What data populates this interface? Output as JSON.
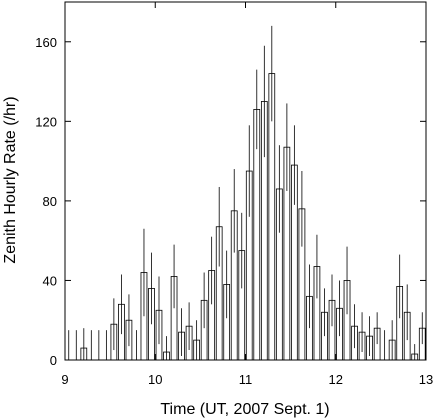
{
  "chart_data": {
    "type": "histogram",
    "xlabel": "Time (UT, 2007 Sept. 1)",
    "ylabel": "Zenith Hourly Rate (/hr)",
    "bins": [
      9,
      9.083,
      9.167,
      9.25,
      9.333,
      9.417,
      9.5,
      9.583,
      9.667,
      9.75,
      9.833,
      9.917,
      10,
      10.083,
      10.167,
      10.25,
      10.333,
      10.417,
      10.5,
      10.583,
      10.667,
      10.75,
      10.833,
      10.917,
      11,
      11.083,
      11.167,
      11.25,
      11.333,
      11.417,
      11.5,
      11.583,
      11.667,
      11.75,
      11.833,
      11.917,
      12,
      12.083,
      12.167,
      12.25,
      12.333,
      12.417,
      12.5,
      12.583,
      12.667,
      12.75,
      12.833,
      12.917,
      13
    ],
    "values": [
      0,
      0,
      6,
      0,
      0,
      0,
      18,
      28,
      20,
      0,
      44,
      36,
      25,
      4,
      42,
      14,
      17,
      10,
      30,
      45,
      67,
      38,
      75,
      55,
      95,
      126,
      130,
      144,
      86,
      107,
      98,
      76,
      32,
      47,
      24,
      30,
      26,
      40,
      17,
      14,
      12,
      16,
      0,
      10,
      37,
      24,
      3,
      16
    ],
    "errors": [
      15,
      15,
      10,
      15,
      15,
      15,
      13,
      15,
      13,
      15,
      22,
      18,
      17,
      8,
      16,
      12,
      12,
      10,
      14,
      17,
      20,
      17,
      21,
      19,
      23,
      20,
      28,
      24,
      22,
      22,
      20,
      19,
      16,
      16,
      12,
      13,
      14,
      17,
      11,
      10,
      10,
      8,
      15,
      10,
      16,
      14,
      5,
      8
    ],
    "color": "#ffffff",
    "xlim": [
      9,
      13
    ],
    "ylim": [
      0,
      180
    ],
    "xticks": [
      9,
      10,
      11,
      12,
      13
    ],
    "yticks": [
      0,
      40,
      80,
      120,
      160
    ]
  }
}
